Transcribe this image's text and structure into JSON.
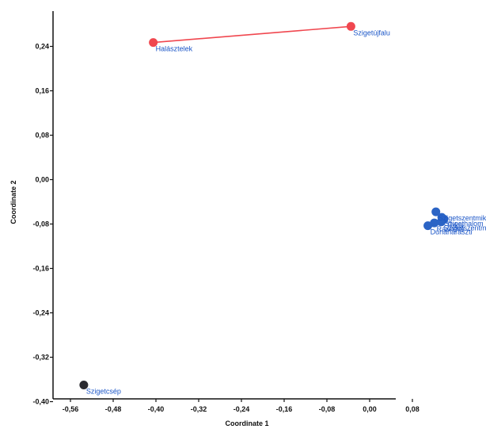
{
  "chart_data": {
    "type": "scatter",
    "title": "",
    "xlabel": "Coordinate 1",
    "ylabel": "Coordinate 2",
    "xlim": [
      -0.6,
      0.14
    ],
    "ylim": [
      -0.4,
      0.27
    ],
    "x_ticks": [
      "-0,56",
      "-0,48",
      "-0,40",
      "-0,32",
      "-0,24",
      "-0,16",
      "-0,08",
      "0,00",
      "0,08"
    ],
    "x_tick_values": [
      -0.56,
      -0.48,
      -0.4,
      -0.32,
      -0.24,
      -0.16,
      -0.08,
      0.0,
      0.08
    ],
    "y_ticks": [
      "0,24",
      "0,16",
      "0,08",
      "0,00",
      "-0,08",
      "-0,16",
      "-0,24",
      "-0,32",
      "-0,40"
    ],
    "y_tick_values": [
      0.24,
      0.16,
      0.08,
      0.0,
      -0.08,
      -0.16,
      -0.24,
      -0.32,
      -0.4
    ],
    "grid": false,
    "colors": {
      "red": "#f0474f",
      "blue": "#2b64c5",
      "dark": "#2a2a30",
      "label": "#1a55c7"
    },
    "points": [
      {
        "label": "Halásztelek",
        "x": -0.405,
        "y": 0.247,
        "color": "red"
      },
      {
        "label": "Szigetújfalu",
        "x": -0.035,
        "y": 0.276,
        "color": "red"
      },
      {
        "label": "Szigetcsép",
        "x": -0.535,
        "y": -0.37,
        "color": "dark"
      },
      {
        "label": "Szigetszentmiklós",
        "x": 0.124,
        "y": -0.058,
        "color": "blue"
      },
      {
        "label": "Szigethalom",
        "x": 0.135,
        "y": -0.068,
        "color": "blue"
      },
      {
        "label": "Tököl",
        "x": 0.139,
        "y": -0.071,
        "color": "blue"
      },
      {
        "label": "Szigetszentmárton",
        "x": 0.134,
        "y": -0.076,
        "color": "blue"
      },
      {
        "label": "Ráckeve",
        "x": 0.121,
        "y": -0.078,
        "color": "blue"
      },
      {
        "label": "Dunaharaszti",
        "x": 0.109,
        "y": -0.083,
        "color": "blue"
      }
    ],
    "connections": [
      {
        "from": "Halásztelek",
        "to": "Szigetújfalu",
        "color": "red"
      }
    ]
  }
}
